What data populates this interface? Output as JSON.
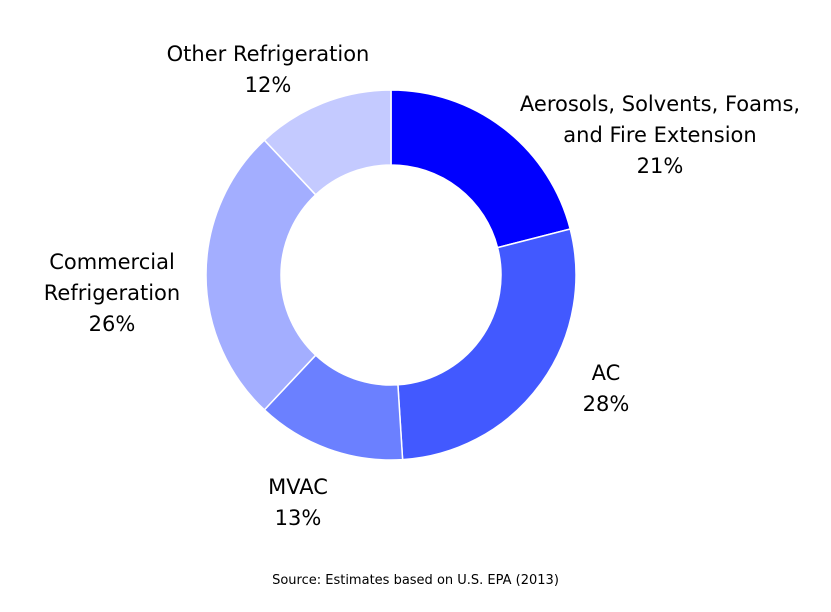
{
  "chart_data": {
    "type": "pie",
    "donut": true,
    "title": "",
    "slices": [
      {
        "label_lines": [
          "Aerosols, Solvents, Foams,",
          "and Fire Extension"
        ],
        "value": 21,
        "value_label": "21%",
        "color": "#0000FF"
      },
      {
        "label_lines": [
          "AC"
        ],
        "value": 28,
        "value_label": "28%",
        "color": "#4259FF"
      },
      {
        "label_lines": [
          "MVAC"
        ],
        "value": 13,
        "value_label": "13%",
        "color": "#6B80FF"
      },
      {
        "label_lines": [
          "Commercial",
          "Refrigeration"
        ],
        "value": 26,
        "value_label": "26%",
        "color": "#A3AEFF"
      },
      {
        "label_lines": [
          "Other Refrigeration"
        ],
        "value": 12,
        "value_label": "12%",
        "color": "#C4CAFF"
      }
    ],
    "start_angle_deg": 0,
    "direction": "clockwise",
    "source": "Source: Estimates based on U.S. EPA (2013)"
  }
}
